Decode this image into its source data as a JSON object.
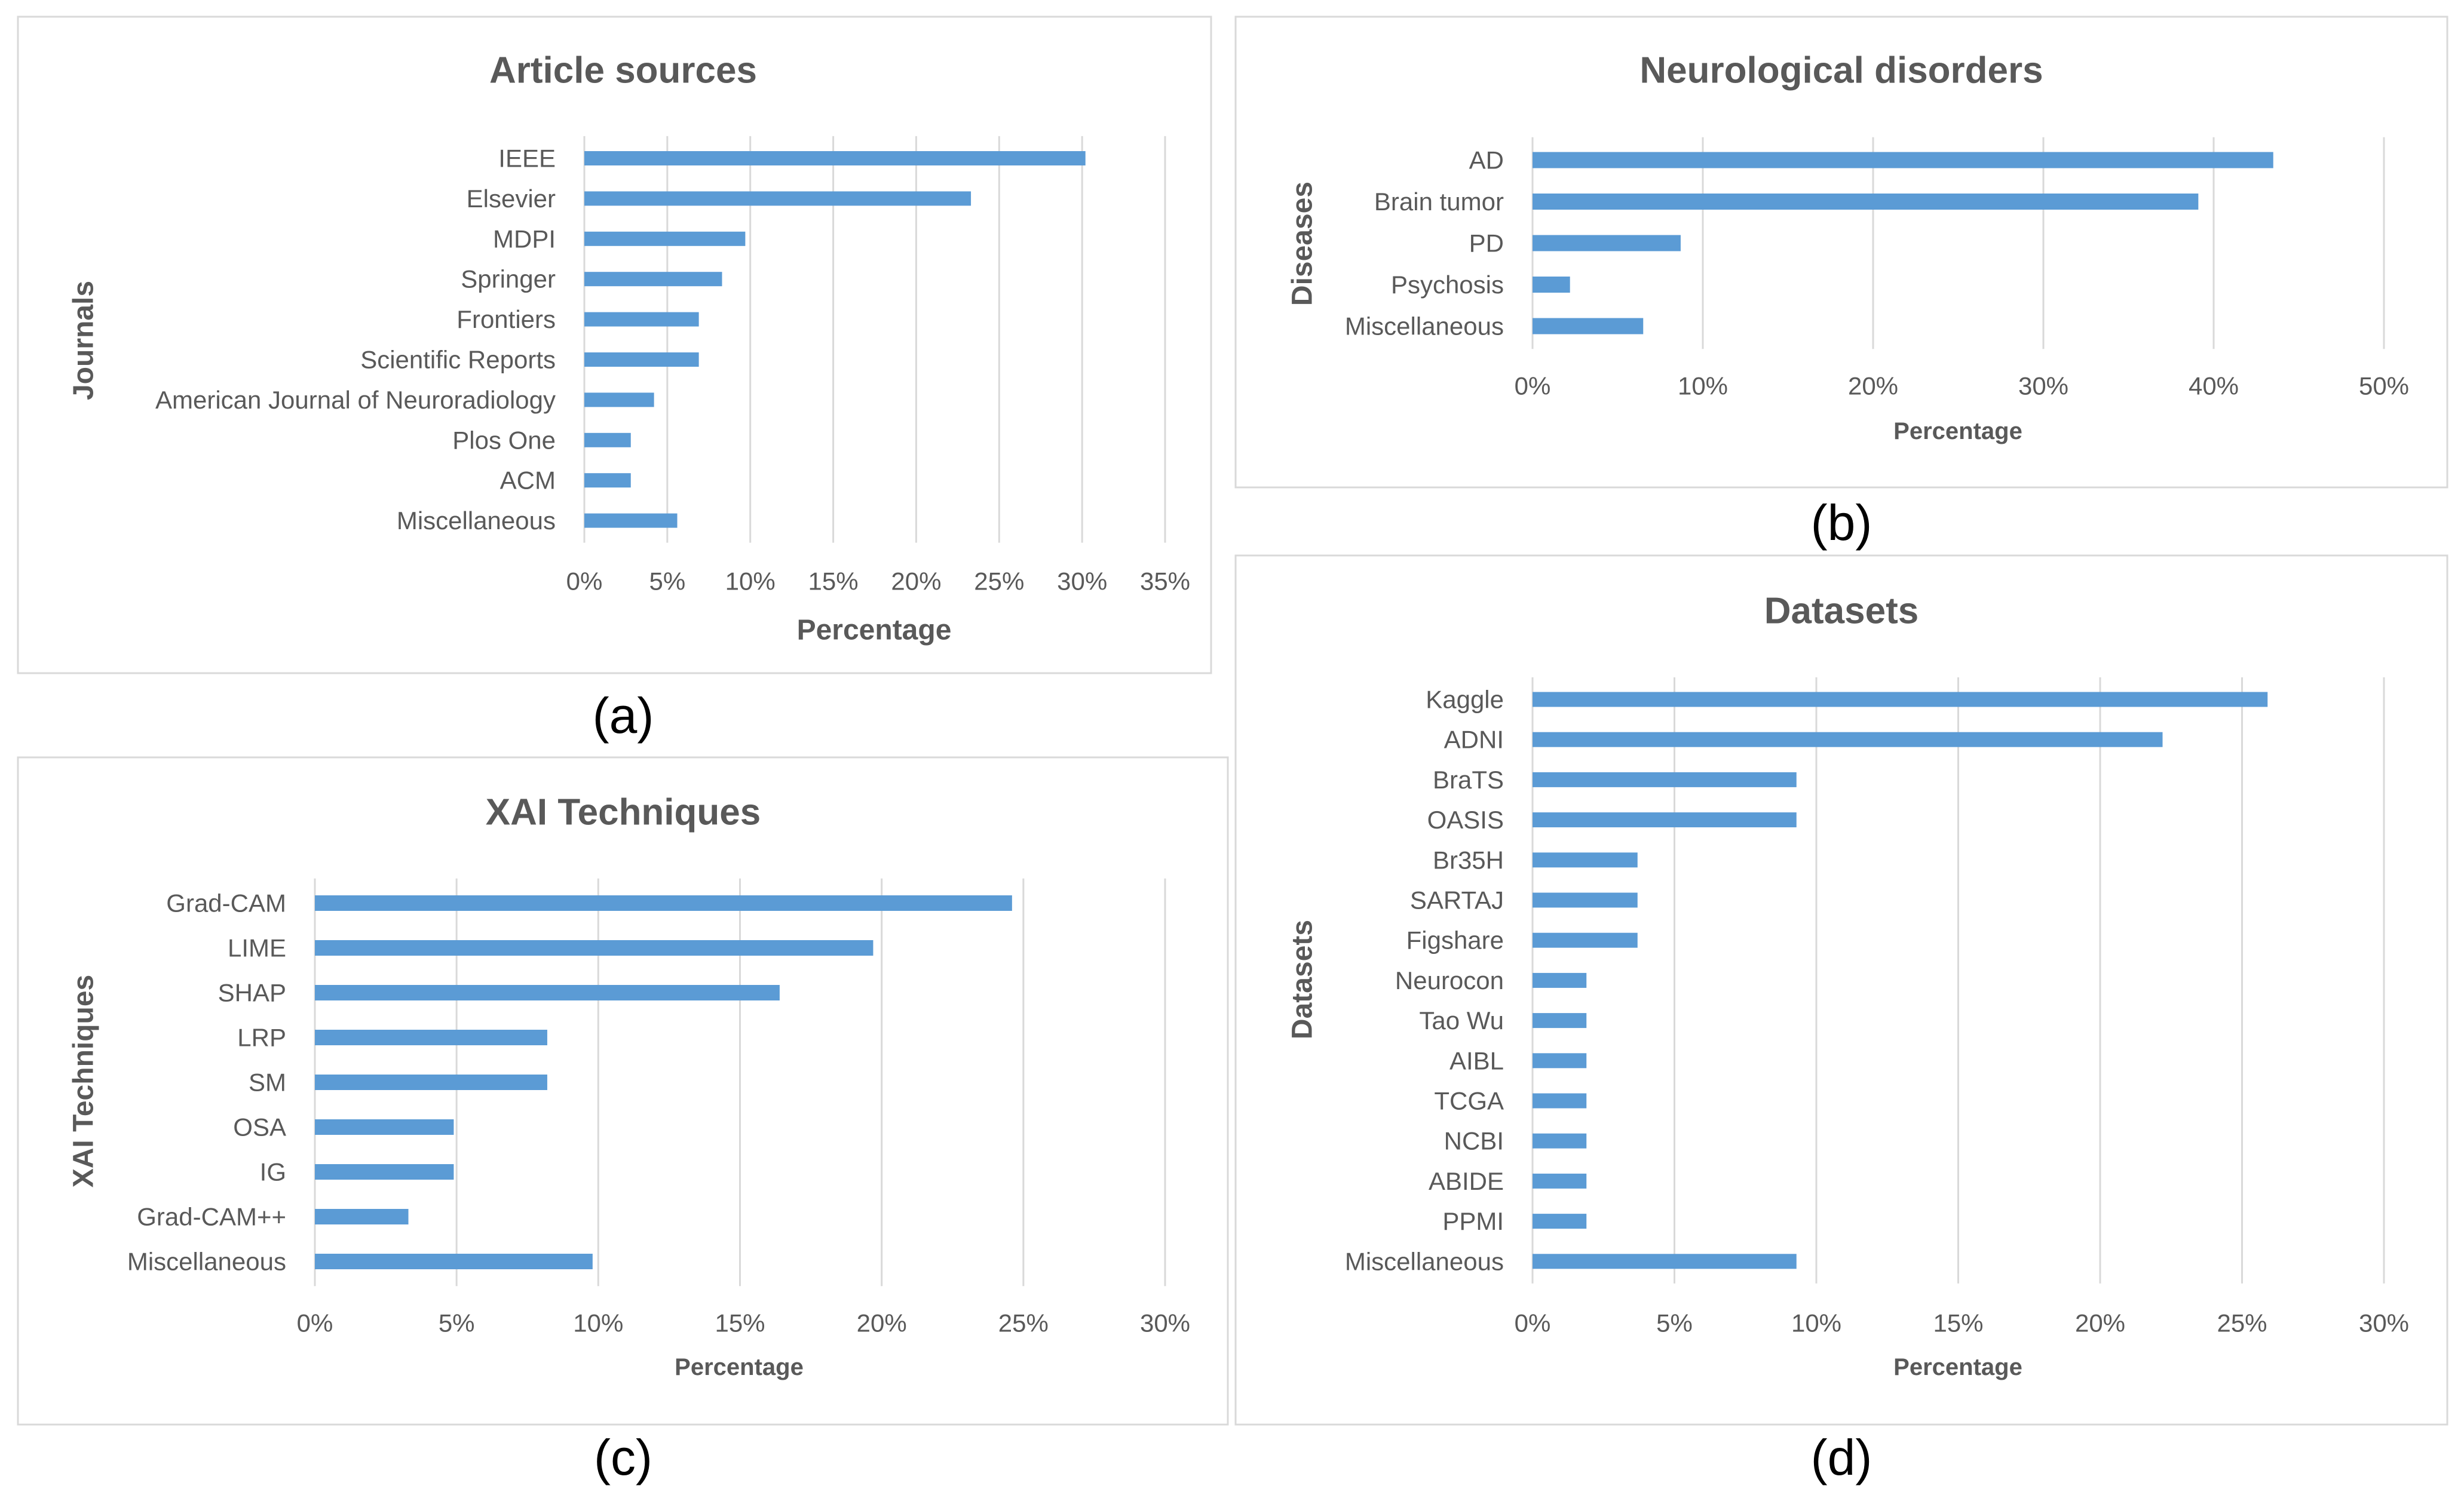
{
  "colors": {
    "bar": "#5b9bd5",
    "text": "#595959",
    "grid": "#d9d9d9"
  },
  "chart_data": [
    {
      "id": "a",
      "panel_label": "(a)",
      "type": "bar",
      "orientation": "horizontal",
      "title": "Article sources",
      "xlabel": "Percentage",
      "ylabel": "Journals",
      "categories": [
        "IEEE",
        "Elsevier",
        "MDPI",
        "Springer",
        "Frontiers",
        "Scientific Reports",
        "American Journal of Neuroradiology",
        "Plos One",
        "ACM",
        "Miscellaneous"
      ],
      "values": [
        30.2,
        23.3,
        9.7,
        8.3,
        6.9,
        6.9,
        4.2,
        2.8,
        2.8,
        5.6
      ],
      "xlim": [
        0,
        35
      ],
      "ticks": [
        "0%",
        "5%",
        "10%",
        "15%",
        "20%",
        "25%",
        "30%",
        "35%"
      ]
    },
    {
      "id": "b",
      "panel_label": "(b)",
      "type": "bar",
      "orientation": "horizontal",
      "title": "Neurological disorders",
      "xlabel": "Percentage",
      "ylabel": "Diseases",
      "categories": [
        "AD",
        "Brain tumor",
        "PD",
        "Psychosis",
        "Miscellaneous"
      ],
      "values": [
        43.5,
        39.1,
        8.7,
        2.2,
        6.5
      ],
      "xlim": [
        0,
        50
      ],
      "ticks": [
        "0%",
        "10%",
        "20%",
        "30%",
        "40%",
        "50%"
      ]
    },
    {
      "id": "c",
      "panel_label": "(c)",
      "type": "bar",
      "orientation": "horizontal",
      "title": "XAI Techniques",
      "xlabel": "Percentage",
      "ylabel": "XAI Techniques",
      "categories": [
        "Grad-CAM",
        "LIME",
        "SHAP",
        "LRP",
        "SM",
        "OSA",
        "IG",
        "Grad-CAM++",
        "Miscellaneous"
      ],
      "values": [
        24.6,
        19.7,
        16.4,
        8.2,
        8.2,
        4.9,
        4.9,
        3.3,
        9.8
      ],
      "xlim": [
        0,
        30
      ],
      "ticks": [
        "0%",
        "5%",
        "10%",
        "15%",
        "20%",
        "25%",
        "30%"
      ]
    },
    {
      "id": "d",
      "panel_label": "(d)",
      "type": "bar",
      "orientation": "horizontal",
      "title": "Datasets",
      "xlabel": "Percentage",
      "ylabel": "Datasets",
      "categories": [
        "Kaggle",
        "ADNI",
        "BraTS",
        "OASIS",
        "Br35H",
        "SARTAJ",
        "Figshare",
        "Neurocon",
        "Tao Wu",
        "AIBL",
        "TCGA",
        "NCBI",
        "ABIDE",
        "PPMI",
        "Miscellaneous"
      ],
      "values": [
        25.9,
        22.2,
        9.3,
        9.3,
        3.7,
        3.7,
        3.7,
        1.9,
        1.9,
        1.9,
        1.9,
        1.9,
        1.9,
        1.9,
        9.3
      ],
      "xlim": [
        0,
        30
      ],
      "ticks": [
        "0%",
        "5%",
        "10%",
        "15%",
        "20%",
        "25%",
        "30%"
      ]
    }
  ]
}
